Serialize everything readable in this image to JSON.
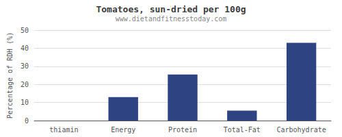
{
  "chart_data": {
    "type": "bar",
    "title": "Tomatoes, sun-dried per 100g",
    "subtitle": "www.dietandfitnesstoday.com",
    "ylabel": "Percentage of RDH (%)",
    "categories": [
      "thiamin",
      "Energy",
      "Protein",
      "Total-Fat",
      "Carbohydrate"
    ],
    "values": [
      0,
      13,
      25.5,
      5.5,
      43
    ],
    "color": "#2e4482",
    "ylim": [
      0,
      50
    ],
    "yticks": [
      0,
      10,
      20,
      30,
      40,
      50
    ],
    "grid": true
  }
}
